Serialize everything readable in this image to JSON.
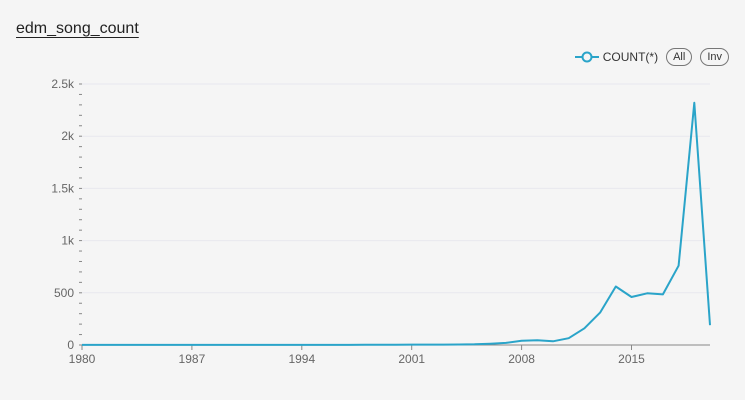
{
  "panel": {
    "title": "edm_song_count"
  },
  "legend": {
    "series_label": "COUNT(*)",
    "all_label": "All",
    "inv_label": "Inv"
  },
  "colors": {
    "series": "#2aa4c9",
    "axis": "#888888",
    "grid": "#e8e8ee",
    "background": "#f5f5f5"
  },
  "chart_data": {
    "type": "line",
    "title": "edm_song_count",
    "xlabel": "",
    "ylabel": "",
    "xlim": [
      1980,
      2020
    ],
    "ylim": [
      0,
      2500
    ],
    "x_ticks": [
      1980,
      1987,
      1994,
      2001,
      2008,
      2015
    ],
    "y_ticks": [
      0,
      500,
      1000,
      1500,
      2000,
      2500
    ],
    "y_tick_labels": [
      "0",
      "500",
      "1k",
      "1.5k",
      "2k",
      "2.5k"
    ],
    "grid": true,
    "legend_position": "top-right",
    "series": [
      {
        "name": "COUNT(*)",
        "x": [
          1980,
          1981,
          1982,
          1983,
          1984,
          1985,
          1986,
          1987,
          1988,
          1989,
          1990,
          1991,
          1992,
          1993,
          1994,
          1995,
          1996,
          1997,
          1998,
          1999,
          2000,
          2001,
          2002,
          2003,
          2004,
          2005,
          2006,
          2007,
          2008,
          2009,
          2010,
          2011,
          2012,
          2013,
          2014,
          2015,
          2016,
          2017,
          2018,
          2019,
          2020
        ],
        "values": [
          1,
          1,
          1,
          1,
          1,
          1,
          1,
          1,
          1,
          1,
          1,
          1,
          1,
          1,
          1,
          1,
          1,
          1,
          2,
          2,
          3,
          4,
          4,
          4,
          5,
          7,
          12,
          20,
          40,
          45,
          35,
          65,
          160,
          310,
          560,
          460,
          495,
          485,
          760,
          2320,
          190
        ]
      }
    ]
  }
}
